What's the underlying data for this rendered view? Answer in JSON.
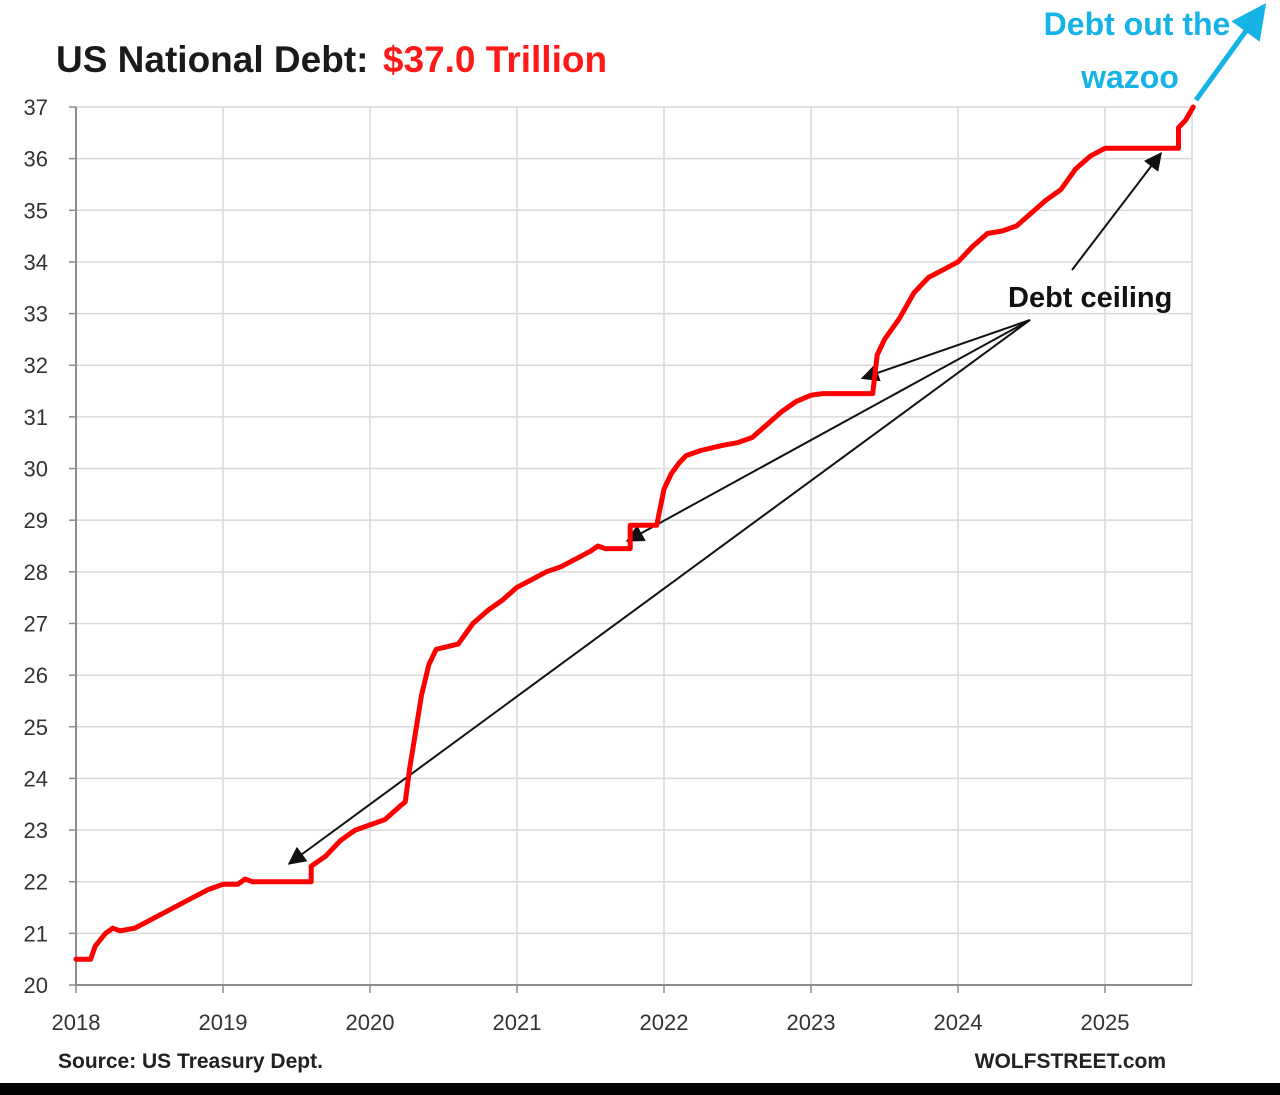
{
  "chart_data": {
    "type": "line",
    "title": "US National Debt:",
    "title_value": "$37.0 Trillion",
    "xlabel": "",
    "ylabel": "",
    "xlim": [
      2018,
      2025.6
    ],
    "ylim": [
      20,
      37
    ],
    "x_ticks": [
      "2018",
      "2019",
      "2020",
      "2021",
      "2022",
      "2023",
      "2024",
      "2025"
    ],
    "y_ticks": [
      "20",
      "21",
      "22",
      "23",
      "24",
      "25",
      "26",
      "27",
      "28",
      "29",
      "30",
      "31",
      "32",
      "33",
      "34",
      "35",
      "36",
      "37"
    ],
    "grid": true,
    "line_color": "#ff0000",
    "series": [
      {
        "values": [
          [
            2018.0,
            20.5
          ],
          [
            2018.1,
            20.5
          ],
          [
            2018.13,
            20.75
          ],
          [
            2018.2,
            21.0
          ],
          [
            2018.25,
            21.1
          ],
          [
            2018.3,
            21.05
          ],
          [
            2018.4,
            21.1
          ],
          [
            2018.5,
            21.25
          ],
          [
            2018.6,
            21.4
          ],
          [
            2018.7,
            21.55
          ],
          [
            2018.8,
            21.7
          ],
          [
            2018.9,
            21.85
          ],
          [
            2019.0,
            21.95
          ],
          [
            2019.1,
            21.95
          ],
          [
            2019.15,
            22.05
          ],
          [
            2019.2,
            22.0
          ],
          [
            2019.6,
            22.0
          ],
          [
            2019.6,
            22.3
          ],
          [
            2019.7,
            22.5
          ],
          [
            2019.8,
            22.8
          ],
          [
            2019.9,
            23.0
          ],
          [
            2020.0,
            23.1
          ],
          [
            2020.1,
            23.2
          ],
          [
            2020.2,
            23.45
          ],
          [
            2020.24,
            23.55
          ],
          [
            2020.27,
            24.2
          ],
          [
            2020.31,
            24.9
          ],
          [
            2020.35,
            25.6
          ],
          [
            2020.4,
            26.2
          ],
          [
            2020.45,
            26.5
          ],
          [
            2020.6,
            26.6
          ],
          [
            2020.7,
            27.0
          ],
          [
            2020.8,
            27.25
          ],
          [
            2020.9,
            27.45
          ],
          [
            2021.0,
            27.7
          ],
          [
            2021.1,
            27.85
          ],
          [
            2021.2,
            28.0
          ],
          [
            2021.3,
            28.1
          ],
          [
            2021.4,
            28.25
          ],
          [
            2021.5,
            28.4
          ],
          [
            2021.55,
            28.5
          ],
          [
            2021.6,
            28.45
          ],
          [
            2021.77,
            28.45
          ],
          [
            2021.77,
            28.9
          ],
          [
            2021.95,
            28.9
          ],
          [
            2022.0,
            29.6
          ],
          [
            2022.05,
            29.9
          ],
          [
            2022.1,
            30.1
          ],
          [
            2022.15,
            30.25
          ],
          [
            2022.25,
            30.35
          ],
          [
            2022.4,
            30.45
          ],
          [
            2022.5,
            30.5
          ],
          [
            2022.6,
            30.6
          ],
          [
            2022.7,
            30.85
          ],
          [
            2022.8,
            31.1
          ],
          [
            2022.9,
            31.3
          ],
          [
            2023.0,
            31.42
          ],
          [
            2023.08,
            31.45
          ],
          [
            2023.42,
            31.45
          ],
          [
            2023.45,
            32.2
          ],
          [
            2023.5,
            32.5
          ],
          [
            2023.6,
            32.9
          ],
          [
            2023.7,
            33.4
          ],
          [
            2023.8,
            33.7
          ],
          [
            2023.9,
            33.85
          ],
          [
            2024.0,
            34.0
          ],
          [
            2024.1,
            34.3
          ],
          [
            2024.2,
            34.55
          ],
          [
            2024.3,
            34.6
          ],
          [
            2024.4,
            34.7
          ],
          [
            2024.5,
            34.95
          ],
          [
            2024.6,
            35.2
          ],
          [
            2024.7,
            35.4
          ],
          [
            2024.8,
            35.8
          ],
          [
            2024.9,
            36.05
          ],
          [
            2025.0,
            36.2
          ],
          [
            2025.5,
            36.2
          ],
          [
            2025.5,
            36.6
          ],
          [
            2025.55,
            36.75
          ],
          [
            2025.6,
            37.0
          ]
        ]
      }
    ],
    "annotations": {
      "debt_ceiling": {
        "text": "Debt ceiling",
        "targets": [
          [
            2019.45,
            22.35
          ],
          [
            2021.75,
            28.6
          ],
          [
            2023.35,
            31.75
          ],
          [
            2025.38,
            36.1
          ]
        ]
      },
      "wazoo": {
        "line1": "Debt out the",
        "line2": "wazoo",
        "color": "#16b4e6"
      }
    },
    "source": "Source: US Treasury Dept.",
    "credit": "WOLFSTREET.com"
  }
}
